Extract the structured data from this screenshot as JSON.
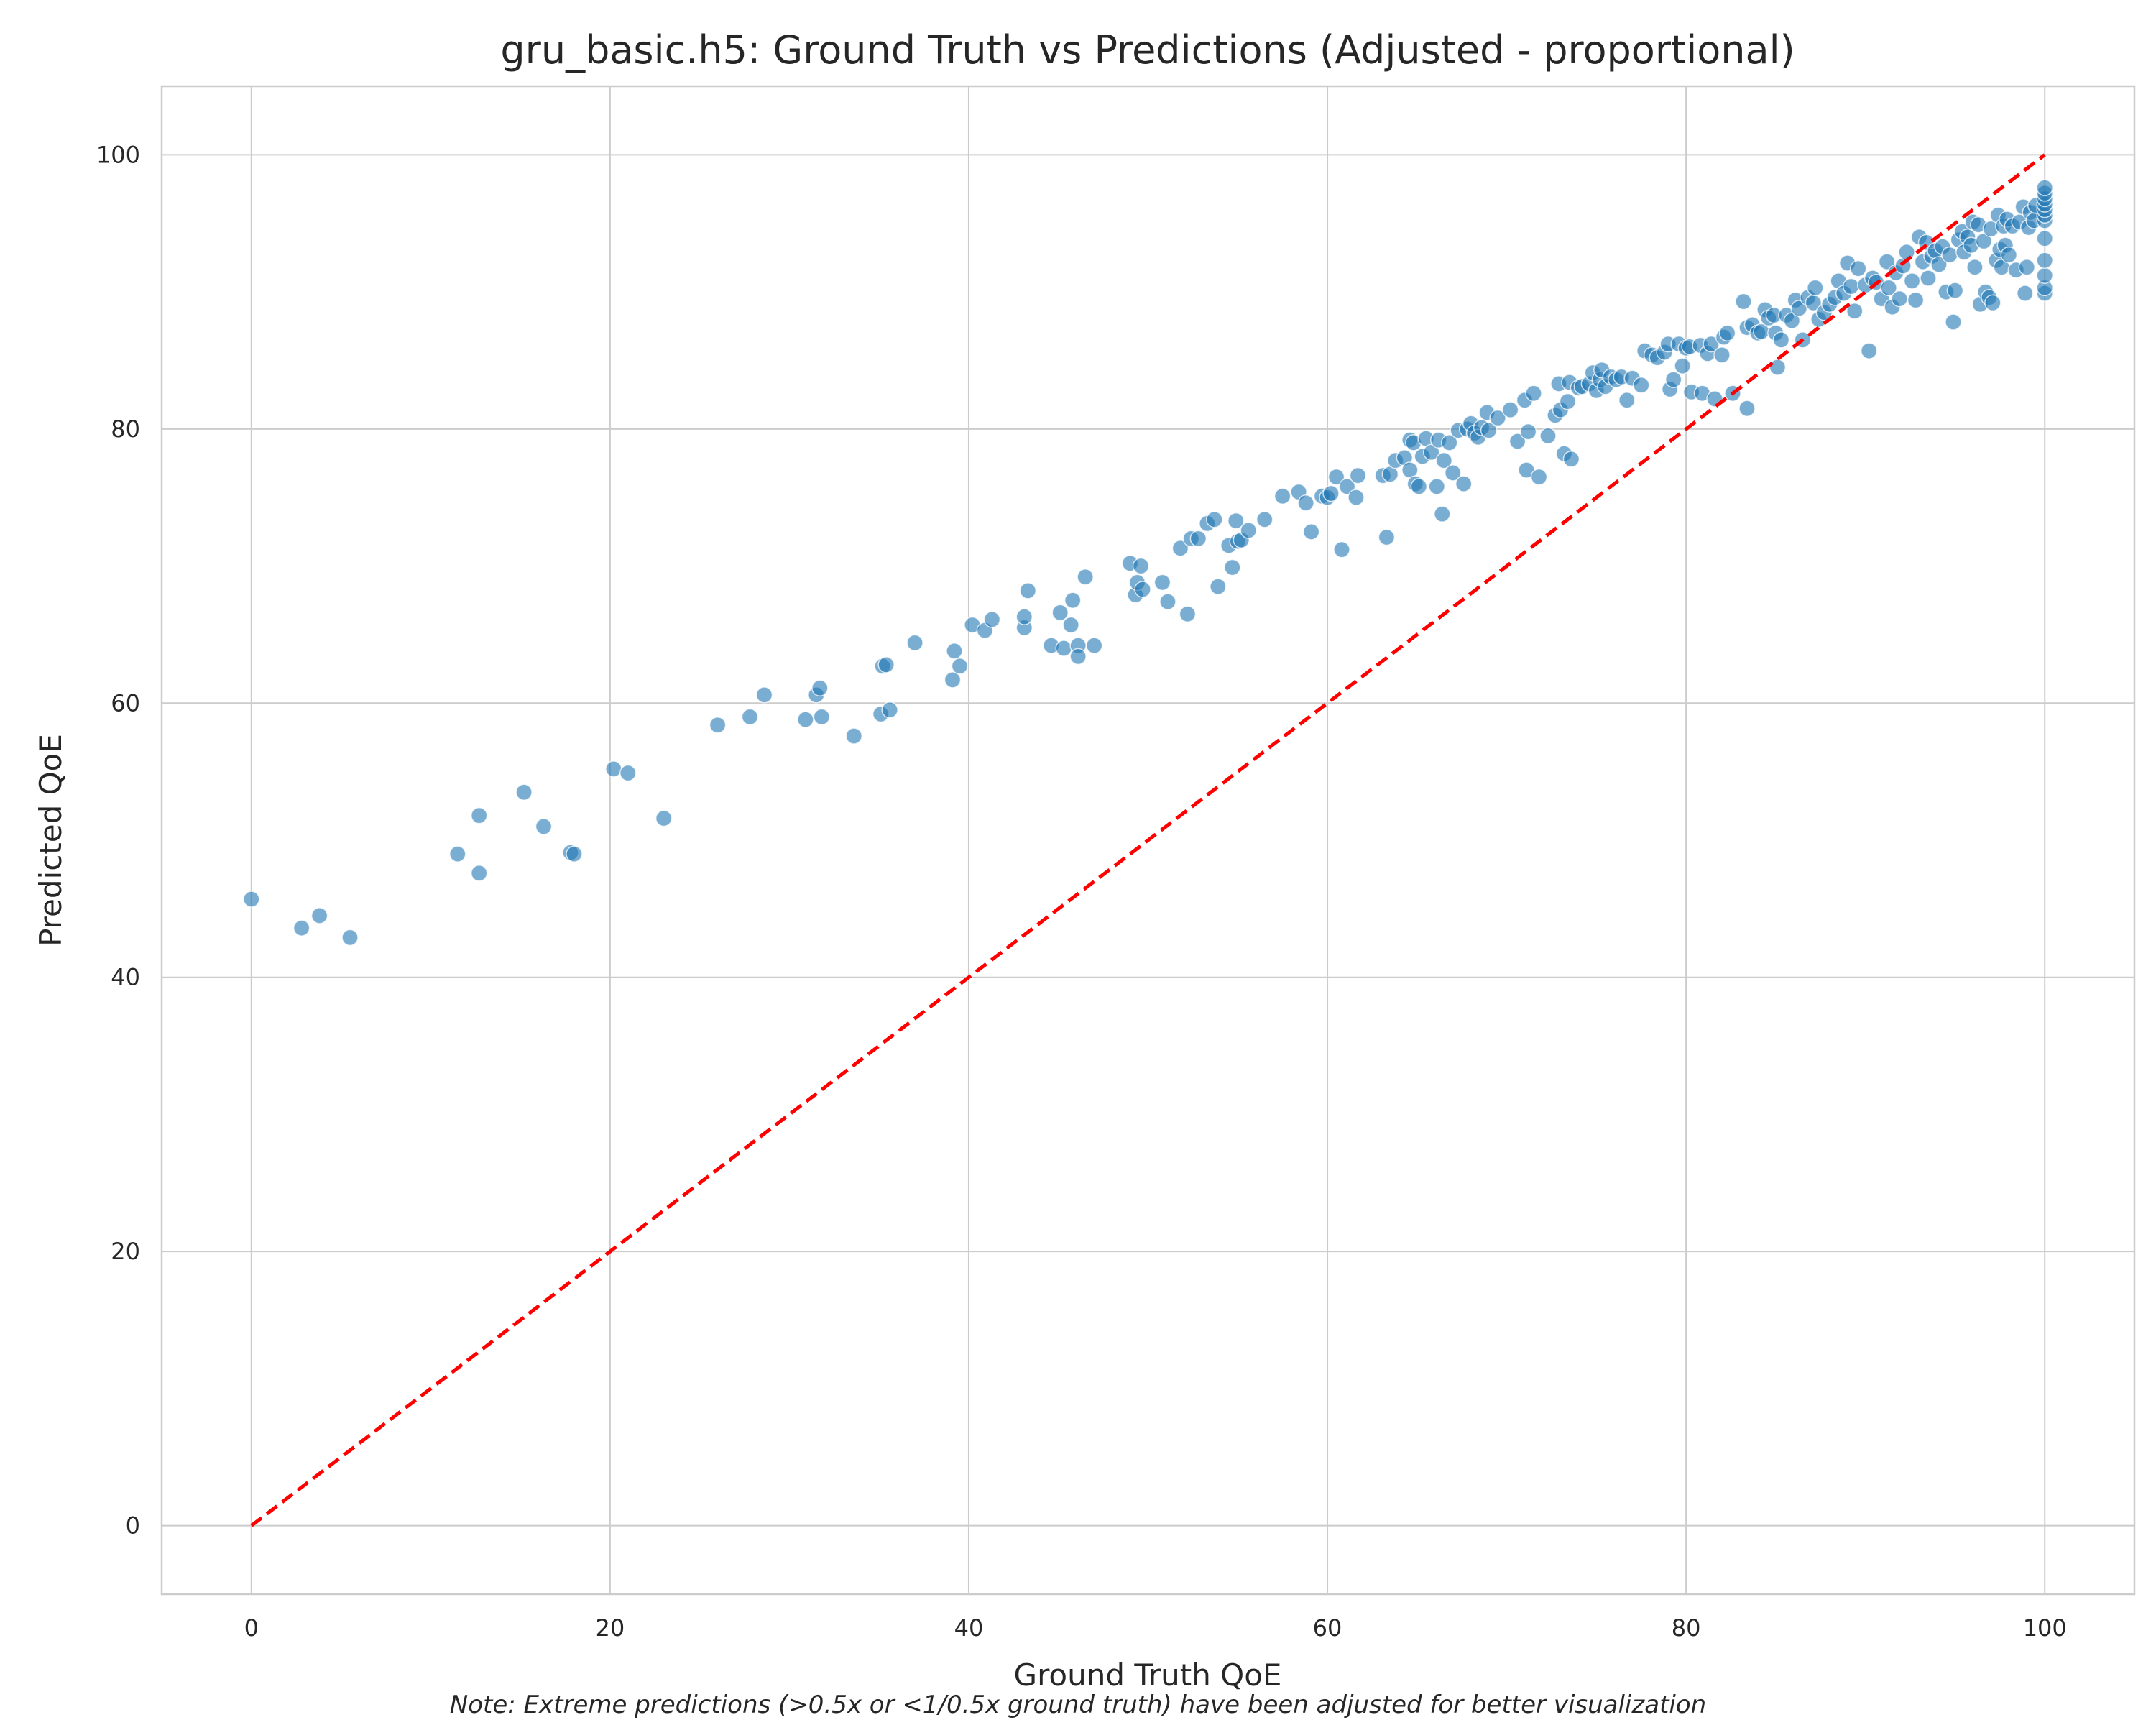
{
  "chart_data": {
    "type": "scatter",
    "title": "gru_basic.h5: Ground Truth vs Predictions (Adjusted - proportional)",
    "xlabel": "Ground Truth QoE",
    "ylabel": "Predicted QoE",
    "note": "Note: Extreme predictions (>0.5x or <1/0.5x ground truth) have been adjusted for better visualization",
    "xlim": [
      -5,
      105
    ],
    "ylim": [
      -5,
      105
    ],
    "xticks": [
      0,
      20,
      40,
      60,
      80,
      100
    ],
    "yticks": [
      0,
      20,
      40,
      60,
      80,
      100
    ],
    "grid": true,
    "point_color": "#1f77b4",
    "reference_line": {
      "from": [
        0,
        0
      ],
      "to": [
        100,
        100
      ],
      "style": "dashed",
      "color": "#ff0000"
    },
    "points": [
      [
        0,
        45.7
      ],
      [
        2.8,
        43.6
      ],
      [
        3.8,
        44.5
      ],
      [
        5.5,
        42.9
      ],
      [
        11.5,
        49.0
      ],
      [
        12.7,
        51.8
      ],
      [
        12.7,
        47.6
      ],
      [
        15.2,
        53.5
      ],
      [
        16.3,
        51.0
      ],
      [
        17.8,
        49.1
      ],
      [
        18.0,
        49.0
      ],
      [
        20.2,
        55.2
      ],
      [
        21.0,
        54.9
      ],
      [
        23.0,
        51.6
      ],
      [
        26.0,
        58.4
      ],
      [
        27.8,
        59.0
      ],
      [
        28.6,
        60.6
      ],
      [
        30.9,
        58.8
      ],
      [
        31.5,
        60.6
      ],
      [
        31.7,
        61.1
      ],
      [
        31.8,
        59.0
      ],
      [
        33.6,
        57.6
      ],
      [
        35.1,
        59.2
      ],
      [
        35.2,
        62.7
      ],
      [
        35.4,
        62.8
      ],
      [
        35.6,
        59.5
      ],
      [
        37.0,
        64.4
      ],
      [
        39.1,
        61.7
      ],
      [
        39.2,
        63.8
      ],
      [
        39.5,
        62.7
      ],
      [
        40.2,
        65.7
      ],
      [
        40.9,
        65.3
      ],
      [
        41.3,
        66.1
      ],
      [
        43.1,
        65.5
      ],
      [
        43.1,
        66.3
      ],
      [
        43.3,
        68.2
      ],
      [
        44.6,
        64.2
      ],
      [
        45.1,
        66.6
      ],
      [
        45.3,
        64.0
      ],
      [
        45.7,
        65.7
      ],
      [
        45.8,
        67.5
      ],
      [
        46.1,
        64.2
      ],
      [
        46.1,
        63.4
      ],
      [
        46.5,
        69.2
      ],
      [
        47.0,
        64.2
      ],
      [
        49.0,
        70.2
      ],
      [
        49.3,
        67.9
      ],
      [
        49.4,
        68.8
      ],
      [
        49.6,
        70.0
      ],
      [
        49.7,
        68.3
      ],
      [
        50.8,
        68.8
      ],
      [
        51.1,
        67.4
      ],
      [
        51.8,
        71.3
      ],
      [
        52.2,
        66.5
      ],
      [
        52.4,
        72.0
      ],
      [
        52.8,
        72.0
      ],
      [
        53.3,
        73.1
      ],
      [
        53.7,
        73.4
      ],
      [
        53.9,
        68.5
      ],
      [
        54.5,
        71.5
      ],
      [
        54.7,
        69.9
      ],
      [
        54.9,
        73.3
      ],
      [
        55.0,
        71.8
      ],
      [
        55.2,
        71.9
      ],
      [
        55.6,
        72.6
      ],
      [
        56.5,
        73.4
      ],
      [
        57.5,
        75.1
      ],
      [
        58.4,
        75.4
      ],
      [
        58.8,
        74.6
      ],
      [
        59.1,
        72.5
      ],
      [
        59.7,
        75.1
      ],
      [
        60.0,
        75.0
      ],
      [
        60.2,
        75.3
      ],
      [
        60.5,
        76.5
      ],
      [
        60.8,
        71.2
      ],
      [
        61.1,
        75.8
      ],
      [
        61.6,
        75.0
      ],
      [
        61.7,
        76.6
      ],
      [
        63.1,
        76.6
      ],
      [
        63.3,
        72.1
      ],
      [
        63.5,
        76.7
      ],
      [
        63.8,
        77.7
      ],
      [
        64.3,
        77.9
      ],
      [
        64.6,
        79.2
      ],
      [
        64.6,
        77.0
      ],
      [
        64.8,
        79.0
      ],
      [
        64.9,
        76.0
      ],
      [
        65.1,
        75.8
      ],
      [
        65.3,
        78.0
      ],
      [
        65.5,
        79.3
      ],
      [
        65.8,
        78.3
      ],
      [
        66.1,
        75.8
      ],
      [
        66.2,
        79.2
      ],
      [
        66.4,
        73.8
      ],
      [
        66.5,
        77.7
      ],
      [
        66.8,
        79.0
      ],
      [
        67.0,
        76.8
      ],
      [
        67.3,
        79.9
      ],
      [
        67.6,
        76.0
      ],
      [
        67.8,
        80.0
      ],
      [
        68.0,
        80.4
      ],
      [
        68.2,
        79.7
      ],
      [
        68.4,
        79.4
      ],
      [
        68.6,
        80.1
      ],
      [
        68.9,
        81.2
      ],
      [
        69.0,
        79.9
      ],
      [
        69.5,
        80.8
      ],
      [
        70.2,
        81.4
      ],
      [
        70.6,
        79.1
      ],
      [
        71.0,
        82.1
      ],
      [
        71.1,
        77.0
      ],
      [
        71.2,
        79.8
      ],
      [
        71.5,
        82.6
      ],
      [
        71.8,
        76.5
      ],
      [
        72.3,
        79.5
      ],
      [
        72.7,
        81.0
      ],
      [
        72.9,
        83.3
      ],
      [
        73.0,
        81.4
      ],
      [
        73.2,
        78.2
      ],
      [
        73.4,
        82.0
      ],
      [
        73.5,
        83.4
      ],
      [
        73.6,
        77.8
      ],
      [
        74.0,
        83.0
      ],
      [
        74.2,
        83.1
      ],
      [
        74.6,
        83.3
      ],
      [
        74.8,
        84.1
      ],
      [
        75.0,
        82.8
      ],
      [
        75.2,
        83.6
      ],
      [
        75.3,
        84.3
      ],
      [
        75.5,
        83.1
      ],
      [
        75.8,
        83.8
      ],
      [
        76.1,
        83.6
      ],
      [
        76.4,
        83.8
      ],
      [
        76.7,
        82.1
      ],
      [
        77.0,
        83.7
      ],
      [
        77.5,
        83.2
      ],
      [
        77.7,
        85.7
      ],
      [
        78.1,
        85.4
      ],
      [
        78.4,
        85.2
      ],
      [
        78.8,
        85.6
      ],
      [
        79.0,
        86.2
      ],
      [
        79.1,
        82.9
      ],
      [
        79.3,
        83.6
      ],
      [
        79.6,
        86.2
      ],
      [
        79.8,
        84.6
      ],
      [
        80.0,
        85.9
      ],
      [
        80.2,
        86.0
      ],
      [
        80.3,
        82.7
      ],
      [
        80.8,
        86.1
      ],
      [
        80.9,
        82.6
      ],
      [
        81.2,
        85.5
      ],
      [
        81.4,
        86.2
      ],
      [
        81.6,
        82.2
      ],
      [
        82.0,
        85.4
      ],
      [
        82.1,
        86.7
      ],
      [
        82.3,
        87.0
      ],
      [
        82.6,
        82.6
      ],
      [
        83.2,
        89.3
      ],
      [
        83.4,
        87.4
      ],
      [
        83.4,
        81.5
      ],
      [
        83.7,
        87.6
      ],
      [
        84.0,
        87.0
      ],
      [
        84.2,
        87.1
      ],
      [
        84.4,
        88.7
      ],
      [
        84.6,
        88.1
      ],
      [
        84.9,
        88.3
      ],
      [
        85.0,
        87.0
      ],
      [
        85.1,
        84.5
      ],
      [
        85.3,
        86.5
      ],
      [
        85.6,
        88.3
      ],
      [
        85.9,
        87.9
      ],
      [
        86.1,
        89.4
      ],
      [
        86.3,
        88.8
      ],
      [
        86.5,
        86.5
      ],
      [
        86.8,
        89.6
      ],
      [
        87.1,
        89.2
      ],
      [
        87.2,
        90.3
      ],
      [
        87.4,
        88.0
      ],
      [
        87.7,
        88.5
      ],
      [
        88.0,
        89.1
      ],
      [
        88.3,
        89.6
      ],
      [
        88.5,
        90.8
      ],
      [
        88.8,
        89.9
      ],
      [
        89.0,
        92.1
      ],
      [
        89.2,
        90.4
      ],
      [
        89.4,
        88.6
      ],
      [
        89.6,
        91.7
      ],
      [
        90.0,
        90.5
      ],
      [
        90.2,
        85.7
      ],
      [
        90.4,
        91.0
      ],
      [
        90.6,
        90.7
      ],
      [
        90.9,
        89.5
      ],
      [
        91.2,
        92.2
      ],
      [
        91.3,
        90.3
      ],
      [
        91.5,
        88.9
      ],
      [
        91.7,
        91.4
      ],
      [
        91.9,
        89.5
      ],
      [
        92.1,
        91.9
      ],
      [
        92.3,
        92.9
      ],
      [
        92.6,
        90.8
      ],
      [
        92.8,
        89.4
      ],
      [
        93.0,
        94.0
      ],
      [
        93.2,
        92.2
      ],
      [
        93.4,
        93.6
      ],
      [
        93.5,
        91.0
      ],
      [
        93.7,
        92.6
      ],
      [
        93.9,
        93.0
      ],
      [
        94.1,
        92.0
      ],
      [
        94.3,
        93.3
      ],
      [
        94.5,
        90.0
      ],
      [
        94.7,
        92.7
      ],
      [
        94.9,
        87.8
      ],
      [
        95.0,
        90.1
      ],
      [
        95.2,
        93.8
      ],
      [
        95.4,
        94.4
      ],
      [
        95.5,
        92.9
      ],
      [
        95.7,
        94.0
      ],
      [
        95.9,
        93.4
      ],
      [
        96.0,
        95.1
      ],
      [
        96.1,
        91.8
      ],
      [
        96.3,
        94.9
      ],
      [
        96.4,
        89.1
      ],
      [
        96.6,
        93.7
      ],
      [
        96.7,
        90.0
      ],
      [
        96.9,
        89.6
      ],
      [
        97.0,
        94.6
      ],
      [
        97.1,
        89.2
      ],
      [
        97.3,
        92.3
      ],
      [
        97.4,
        95.6
      ],
      [
        97.5,
        93.1
      ],
      [
        97.6,
        91.8
      ],
      [
        97.7,
        94.8
      ],
      [
        97.8,
        93.4
      ],
      [
        97.9,
        95.3
      ],
      [
        98.0,
        92.7
      ],
      [
        98.2,
        94.8
      ],
      [
        98.4,
        91.6
      ],
      [
        98.6,
        95.1
      ],
      [
        98.8,
        96.2
      ],
      [
        98.9,
        89.9
      ],
      [
        99.0,
        91.8
      ],
      [
        99.1,
        94.7
      ],
      [
        99.2,
        95.8
      ],
      [
        99.4,
        95.2
      ],
      [
        99.5,
        96.3
      ],
      [
        100,
        89.9
      ],
      [
        100,
        90.3
      ],
      [
        100,
        91.2
      ],
      [
        100,
        92.3
      ],
      [
        100,
        93.9
      ],
      [
        100,
        95.2
      ],
      [
        100,
        95.6
      ],
      [
        100,
        96.0
      ],
      [
        100,
        96.4
      ],
      [
        100,
        96.8
      ],
      [
        100,
        97.2
      ],
      [
        100,
        97.6
      ]
    ]
  }
}
